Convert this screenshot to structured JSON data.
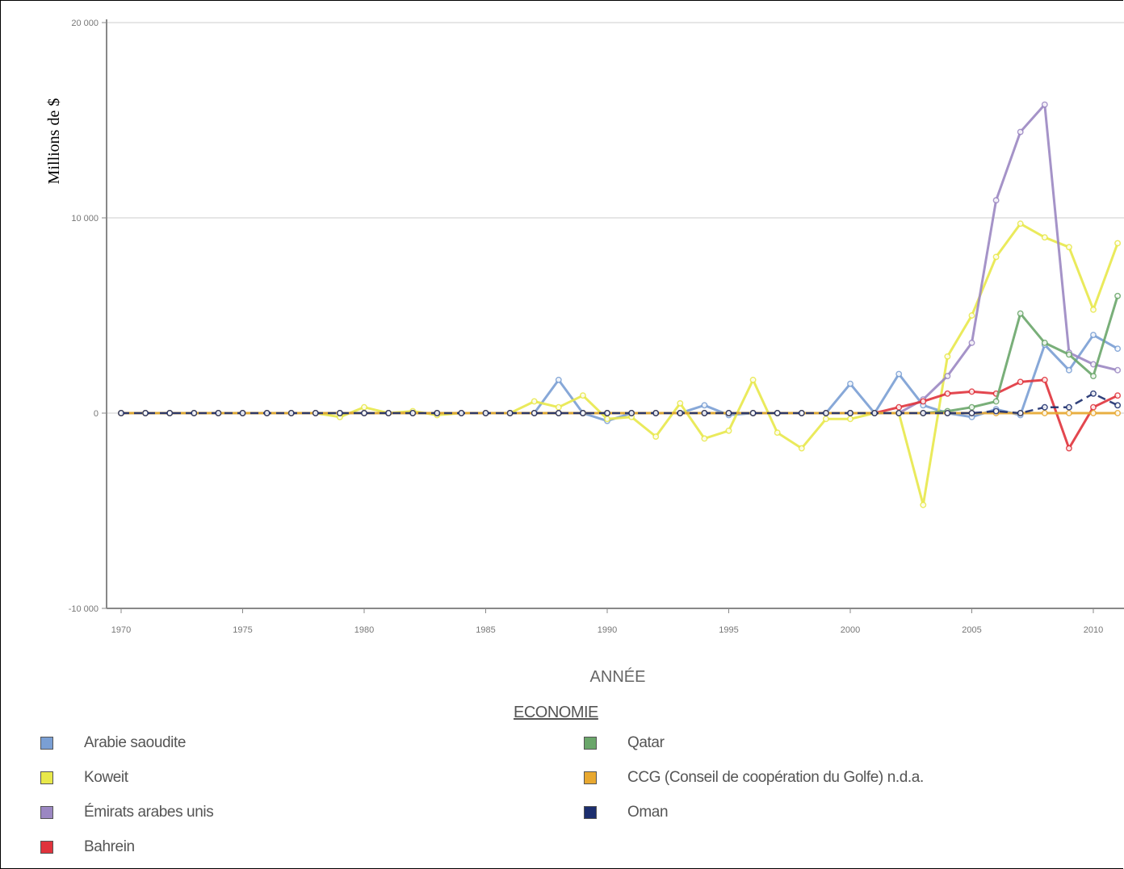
{
  "chart_data": {
    "type": "line",
    "ylabel": "Millions de $",
    "xlabel": "ANNÉE",
    "legend_title": "ECONOMIE",
    "ylim": [
      -10000,
      20000
    ],
    "yticks": [
      20000,
      10000,
      0,
      -10000
    ],
    "ytick_labels": [
      "20 000",
      "10 000",
      "0",
      "-10 000"
    ],
    "xlim": [
      1970,
      2011
    ],
    "xticks": [
      1970,
      1975,
      1980,
      1985,
      1990,
      1995,
      2000,
      2005,
      2010
    ],
    "grid": true,
    "x": [
      1970,
      1971,
      1972,
      1973,
      1974,
      1975,
      1976,
      1977,
      1978,
      1979,
      1980,
      1981,
      1982,
      1983,
      1984,
      1985,
      1986,
      1987,
      1988,
      1989,
      1990,
      1991,
      1992,
      1993,
      1994,
      1995,
      1996,
      1997,
      1998,
      1999,
      2000,
      2001,
      2002,
      2003,
      2004,
      2005,
      2006,
      2007,
      2008,
      2009,
      2010,
      2011
    ],
    "series": [
      {
        "name": "Arabie saoudite",
        "color": "#7a9fd4",
        "values": [
          0,
          0,
          0,
          0,
          0,
          0,
          0,
          0,
          0,
          0,
          0,
          0,
          0,
          0,
          0,
          0,
          0,
          0,
          1700,
          0,
          -400,
          0,
          0,
          0,
          400,
          -100,
          0,
          0,
          0,
          0,
          1500,
          0,
          2000,
          400,
          0,
          -200,
          200,
          -100,
          3500,
          2200,
          4000,
          3300
        ]
      },
      {
        "name": "Koweit",
        "color": "#e8e84a",
        "values": [
          0,
          0,
          0,
          0,
          0,
          0,
          0,
          0,
          0,
          -200,
          300,
          0,
          100,
          -100,
          0,
          0,
          0,
          600,
          300,
          900,
          -300,
          -200,
          -1200,
          500,
          -1300,
          -900,
          1700,
          -1000,
          -1800,
          -300,
          -300,
          0,
          0,
          -4700,
          2900,
          5000,
          8000,
          9700,
          9000,
          8500,
          5300,
          8700
        ]
      },
      {
        "name": "Émirats arabes unis",
        "color": "#9b87c2",
        "values": [
          0,
          0,
          0,
          0,
          0,
          0,
          0,
          0,
          0,
          0,
          0,
          0,
          0,
          0,
          0,
          0,
          0,
          0,
          0,
          0,
          0,
          0,
          0,
          0,
          0,
          0,
          0,
          0,
          0,
          0,
          0,
          0,
          0,
          700,
          1900,
          3600,
          10900,
          14400,
          15800,
          3100,
          2500,
          2200
        ]
      },
      {
        "name": "Bahrein",
        "color": "#e0333c",
        "values": [
          0,
          0,
          0,
          0,
          0,
          0,
          0,
          0,
          0,
          0,
          0,
          0,
          0,
          0,
          0,
          0,
          0,
          0,
          0,
          0,
          0,
          0,
          0,
          0,
          0,
          0,
          0,
          0,
          0,
          0,
          0,
          0,
          300,
          600,
          1000,
          1100,
          1000,
          1600,
          1700,
          -1800,
          300,
          900
        ]
      },
      {
        "name": "Qatar",
        "color": "#6aa66a",
        "values": [
          0,
          0,
          0,
          0,
          0,
          0,
          0,
          0,
          0,
          0,
          0,
          0,
          0,
          0,
          0,
          0,
          0,
          0,
          0,
          0,
          0,
          0,
          0,
          0,
          0,
          0,
          0,
          0,
          0,
          0,
          0,
          0,
          0,
          0,
          100,
          300,
          600,
          5100,
          3600,
          3000,
          1900,
          6000
        ]
      },
      {
        "name": "CCG (Conseil de coopération du Golfe) n.d.a.",
        "color": "#e8a830",
        "values": [
          0,
          0,
          0,
          0,
          0,
          0,
          0,
          0,
          0,
          0,
          0,
          0,
          0,
          0,
          0,
          0,
          0,
          0,
          0,
          0,
          0,
          0,
          0,
          0,
          0,
          0,
          0,
          0,
          0,
          0,
          0,
          0,
          0,
          0,
          0,
          0,
          0,
          0,
          0,
          0,
          0,
          0
        ]
      },
      {
        "name": "Oman",
        "color": "#1c2e6e",
        "values": [
          0,
          0,
          0,
          0,
          0,
          0,
          0,
          0,
          0,
          0,
          0,
          0,
          0,
          0,
          0,
          0,
          0,
          0,
          0,
          0,
          0,
          0,
          0,
          0,
          0,
          0,
          0,
          0,
          0,
          0,
          0,
          0,
          0,
          0,
          0,
          0,
          100,
          0,
          300,
          300,
          1000,
          400
        ]
      }
    ],
    "legend_columns": [
      [
        "Arabie saoudite",
        "Koweit",
        "Émirats arabes unis",
        "Bahrein"
      ],
      [
        "Qatar",
        "CCG (Conseil de coopération du Golfe) n.d.a.",
        "Oman"
      ]
    ]
  }
}
